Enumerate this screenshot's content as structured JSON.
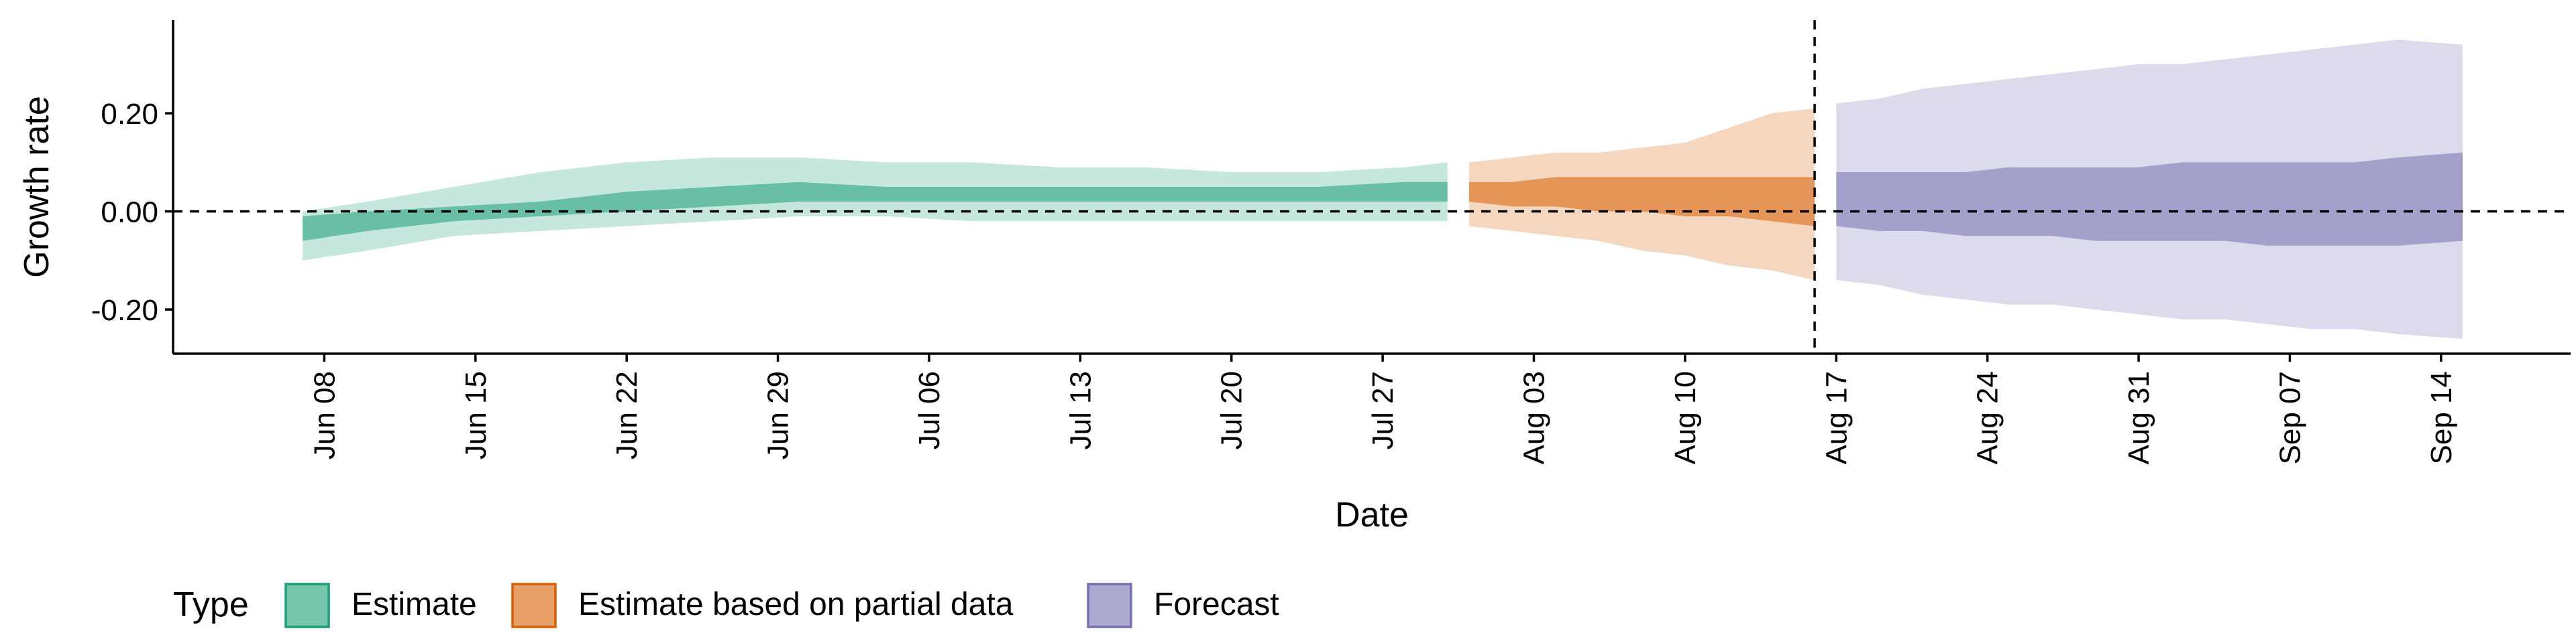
{
  "chart_data": {
    "type": "area",
    "xlabel": "Date",
    "ylabel": "Growth rate",
    "ylim": [
      -0.29,
      0.39
    ],
    "y_ticks": [
      -0.2,
      0.0,
      0.2
    ],
    "y_tick_labels": [
      "-0.20",
      "0.00",
      "0.20"
    ],
    "x_range": [
      "2021-06-01",
      "2021-09-20"
    ],
    "x_ticks": [
      "2021-06-08",
      "2021-06-15",
      "2021-06-22",
      "2021-06-29",
      "2021-07-06",
      "2021-07-13",
      "2021-07-20",
      "2021-07-27",
      "2021-08-03",
      "2021-08-10",
      "2021-08-17",
      "2021-08-24",
      "2021-08-31",
      "2021-09-07",
      "2021-09-14"
    ],
    "x_tick_labels": [
      "Jun 08",
      "Jun 15",
      "Jun 22",
      "Jun 29",
      "Jul 06",
      "Jul 13",
      "Jul 20",
      "Jul 27",
      "Aug 03",
      "Aug 10",
      "Aug 17",
      "Aug 24",
      "Aug 31",
      "Sep 07",
      "Sep 14"
    ],
    "reference_lines": {
      "horizontal_y": 0.0,
      "vertical_date": "2021-08-16"
    },
    "grid": false,
    "legend": {
      "title": "Type",
      "position": "bottom-left",
      "entries": [
        {
          "label": "Estimate",
          "color": "#1b9e77"
        },
        {
          "label": "Estimate based on partial data",
          "color": "#d95f02"
        },
        {
          "label": "Forecast",
          "color": "#7570b3"
        }
      ]
    },
    "series": [
      {
        "name": "Estimate",
        "color": "#1b9e77",
        "x": [
          "2021-06-07",
          "2021-06-10",
          "2021-06-14",
          "2021-06-18",
          "2021-06-22",
          "2021-06-26",
          "2021-06-30",
          "2021-07-04",
          "2021-07-08",
          "2021-07-12",
          "2021-07-16",
          "2021-07-20",
          "2021-07-24",
          "2021-07-28",
          "2021-07-30"
        ],
        "lower_90": [
          -0.1,
          -0.08,
          -0.05,
          -0.04,
          -0.03,
          -0.02,
          -0.01,
          -0.01,
          -0.02,
          -0.02,
          -0.02,
          -0.02,
          -0.02,
          -0.02,
          -0.02
        ],
        "lower_50": [
          -0.06,
          -0.04,
          -0.02,
          -0.01,
          0.0,
          0.01,
          0.02,
          0.02,
          0.02,
          0.02,
          0.02,
          0.02,
          0.02,
          0.02,
          0.02
        ],
        "upper_50": [
          -0.01,
          0.0,
          0.01,
          0.02,
          0.04,
          0.05,
          0.06,
          0.05,
          0.05,
          0.05,
          0.05,
          0.05,
          0.05,
          0.06,
          0.06
        ],
        "upper_90": [
          0.0,
          0.02,
          0.05,
          0.08,
          0.1,
          0.11,
          0.11,
          0.1,
          0.1,
          0.09,
          0.09,
          0.08,
          0.08,
          0.09,
          0.1
        ]
      },
      {
        "name": "Estimate based on partial data",
        "color": "#d95f02",
        "x": [
          "2021-07-31",
          "2021-08-02",
          "2021-08-04",
          "2021-08-06",
          "2021-08-08",
          "2021-08-10",
          "2021-08-12",
          "2021-08-14",
          "2021-08-16"
        ],
        "lower_90": [
          -0.03,
          -0.04,
          -0.05,
          -0.06,
          -0.08,
          -0.09,
          -0.11,
          -0.12,
          -0.14
        ],
        "lower_50": [
          0.02,
          0.01,
          0.01,
          0.0,
          0.0,
          -0.01,
          -0.01,
          -0.02,
          -0.03
        ],
        "upper_50": [
          0.06,
          0.06,
          0.07,
          0.07,
          0.07,
          0.07,
          0.07,
          0.07,
          0.07
        ],
        "upper_90": [
          0.1,
          0.11,
          0.12,
          0.12,
          0.13,
          0.14,
          0.17,
          0.2,
          0.21
        ]
      },
      {
        "name": "Forecast",
        "color": "#7570b3",
        "x": [
          "2021-08-17",
          "2021-08-19",
          "2021-08-21",
          "2021-08-23",
          "2021-08-25",
          "2021-08-27",
          "2021-08-29",
          "2021-08-31",
          "2021-09-02",
          "2021-09-04",
          "2021-09-06",
          "2021-09-08",
          "2021-09-10",
          "2021-09-12",
          "2021-09-15"
        ],
        "lower_90": [
          -0.14,
          -0.15,
          -0.17,
          -0.18,
          -0.19,
          -0.19,
          -0.2,
          -0.21,
          -0.22,
          -0.22,
          -0.23,
          -0.24,
          -0.24,
          -0.25,
          -0.26
        ],
        "lower_50": [
          -0.03,
          -0.04,
          -0.04,
          -0.05,
          -0.05,
          -0.05,
          -0.06,
          -0.06,
          -0.06,
          -0.06,
          -0.07,
          -0.07,
          -0.07,
          -0.07,
          -0.06
        ],
        "upper_50": [
          0.08,
          0.08,
          0.08,
          0.08,
          0.09,
          0.09,
          0.09,
          0.09,
          0.1,
          0.1,
          0.1,
          0.1,
          0.1,
          0.11,
          0.12
        ],
        "upper_90": [
          0.22,
          0.23,
          0.25,
          0.26,
          0.27,
          0.28,
          0.29,
          0.3,
          0.3,
          0.31,
          0.32,
          0.33,
          0.34,
          0.35,
          0.34
        ]
      }
    ]
  }
}
